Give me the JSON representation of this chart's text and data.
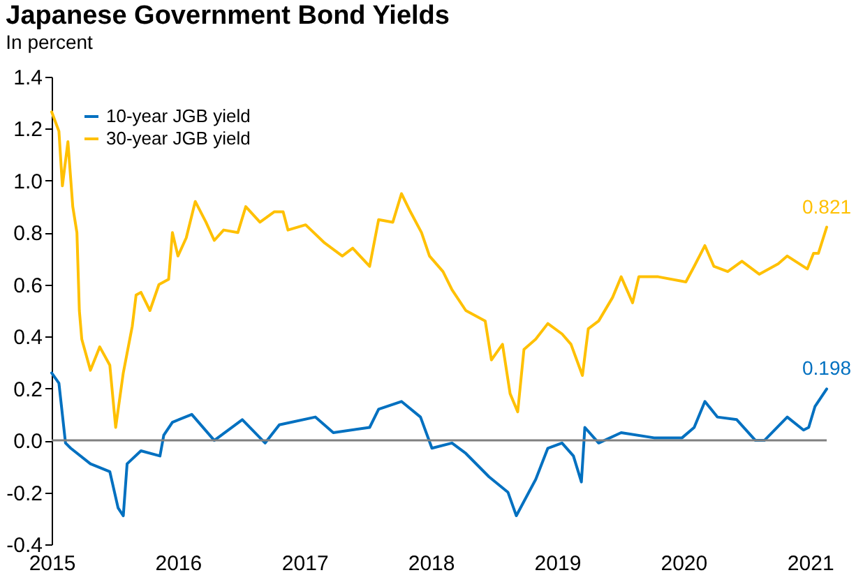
{
  "chart_data": {
    "type": "line",
    "title": "Japanese Government Bond Yields",
    "subtitle": "In percent",
    "xlim": [
      "2015-01-01",
      "2021-02-18"
    ],
    "xticks": [
      "2015",
      "2016",
      "2017",
      "2018",
      "2019",
      "2020",
      "2021"
    ],
    "ylim": [
      -0.4,
      1.4
    ],
    "yticks": [
      {
        "value": -0.4,
        "label": "-0.4"
      },
      {
        "value": -0.2,
        "label": "-0.2"
      },
      {
        "value": 0,
        "label": "0.0"
      },
      {
        "value": 0.2,
        "label": "0.2"
      },
      {
        "value": 0.4,
        "label": "0.4"
      },
      {
        "value": 0.6,
        "label": "0.6"
      },
      {
        "value": 0.8,
        "label": "0.8"
      },
      {
        "value": 1,
        "label": "1.0"
      },
      {
        "value": 1.2,
        "label": "1.2"
      },
      {
        "value": 1.4,
        "label": "1.4"
      }
    ],
    "grid": false,
    "legend": "top left",
    "line_style": "solid",
    "marker": "none",
    "ref_lines": [
      {
        "axis": "y",
        "value": 0,
        "color": "#808080"
      }
    ],
    "series": [
      {
        "name": "10-year JGB yield",
        "color": "#0070c0",
        "x": [
          "2015-01-01",
          "2015-01-22",
          "2015-02-10",
          "2015-02-25",
          "2015-04-23",
          "2015-06-18",
          "2015-07-12",
          "2015-07-27",
          "2015-08-07",
          "2015-09-16",
          "2015-11-10",
          "2015-11-21",
          "2015-12-16",
          "2016-02-10",
          "2016-04-15",
          "2016-07-05",
          "2016-09-09",
          "2016-10-20",
          "2017-02-01",
          "2017-03-25",
          "2017-07-08",
          "2017-08-03",
          "2017-10-08",
          "2017-12-02",
          "2018-01-04",
          "2018-03-03",
          "2018-04-12",
          "2018-06-18",
          "2018-08-12",
          "2018-09-05",
          "2018-10-31",
          "2018-12-05",
          "2019-01-15",
          "2019-02-17",
          "2019-03-12",
          "2019-03-22",
          "2019-05-01",
          "2019-07-05",
          "2019-10-08",
          "2019-12-28",
          "2020-02-01",
          "2020-03-03",
          "2020-04-08",
          "2020-06-03",
          "2020-07-27",
          "2020-08-22",
          "2020-10-27",
          "2020-12-13",
          "2020-12-28",
          "2021-01-15",
          "2021-02-18"
        ],
        "values": [
          0.26,
          0.22,
          -0.01,
          -0.03,
          -0.09,
          -0.12,
          -0.26,
          -0.29,
          -0.09,
          -0.04,
          -0.06,
          0.02,
          0.07,
          0.1,
          0.0,
          0.08,
          -0.01,
          0.06,
          0.09,
          0.03,
          0.05,
          0.12,
          0.15,
          0.09,
          -0.03,
          -0.01,
          -0.05,
          -0.14,
          -0.2,
          -0.29,
          -0.15,
          -0.03,
          -0.01,
          -0.06,
          -0.16,
          0.05,
          -0.01,
          0.03,
          0.01,
          0.01,
          0.05,
          0.15,
          0.09,
          0.08,
          0.0,
          0.0,
          0.09,
          0.04,
          0.05,
          0.13,
          0.198
        ],
        "value_labels": [
          null,
          null,
          null,
          null,
          null,
          null,
          null,
          null,
          null,
          null,
          null,
          null,
          null,
          null,
          null,
          null,
          null,
          null,
          null,
          null,
          null,
          null,
          null,
          null,
          null,
          null,
          null,
          null,
          null,
          null,
          null,
          null,
          null,
          null,
          null,
          null,
          null,
          null,
          null,
          null,
          null,
          null,
          null,
          null,
          null,
          null,
          null,
          null,
          null,
          null,
          "0.198"
        ]
      },
      {
        "name": "30-year JGB yield",
        "color": "#ffc000",
        "x": [
          "2015-01-01",
          "2015-01-22",
          "2015-02-01",
          "2015-02-17",
          "2015-03-03",
          "2015-03-15",
          "2015-03-22",
          "2015-03-29",
          "2015-04-23",
          "2015-05-20",
          "2015-06-18",
          "2015-07-05",
          "2015-07-27",
          "2015-08-22",
          "2015-09-02",
          "2015-09-16",
          "2015-10-12",
          "2015-11-07",
          "2015-12-05",
          "2015-12-16",
          "2016-01-01",
          "2016-01-25",
          "2016-02-20",
          "2016-03-22",
          "2016-04-15",
          "2016-05-12",
          "2016-06-22",
          "2016-07-15",
          "2016-08-25",
          "2016-10-05",
          "2016-10-31",
          "2016-11-14",
          "2017-01-04",
          "2017-02-28",
          "2017-04-20",
          "2017-05-20",
          "2017-07-08",
          "2017-08-03",
          "2017-09-13",
          "2017-10-08",
          "2017-11-03",
          "2017-12-05",
          "2017-12-28",
          "2018-02-05",
          "2018-03-03",
          "2018-04-12",
          "2018-06-07",
          "2018-06-25",
          "2018-07-27",
          "2018-08-18",
          "2018-09-09",
          "2018-09-27",
          "2018-10-31",
          "2018-12-05",
          "2019-01-15",
          "2019-02-10",
          "2019-03-15",
          "2019-04-01",
          "2019-05-01",
          "2019-06-10",
          "2019-07-05",
          "2019-08-07",
          "2019-08-25",
          "2019-10-20",
          "2020-01-08",
          "2020-02-01",
          "2020-03-03",
          "2020-03-29",
          "2020-05-08",
          "2020-06-18",
          "2020-08-07",
          "2020-10-01",
          "2020-10-27",
          "2020-12-24",
          "2021-01-11",
          "2021-01-25",
          "2021-02-18"
        ],
        "values": [
          1.265,
          1.19,
          0.98,
          1.15,
          0.9,
          0.8,
          0.5,
          0.39,
          0.27,
          0.36,
          0.29,
          0.05,
          0.26,
          0.44,
          0.56,
          0.57,
          0.5,
          0.6,
          0.62,
          0.8,
          0.71,
          0.78,
          0.92,
          0.84,
          0.77,
          0.81,
          0.8,
          0.9,
          0.84,
          0.88,
          0.88,
          0.81,
          0.83,
          0.76,
          0.71,
          0.74,
          0.67,
          0.85,
          0.84,
          0.95,
          0.88,
          0.8,
          0.71,
          0.65,
          0.58,
          0.5,
          0.46,
          0.31,
          0.37,
          0.18,
          0.11,
          0.35,
          0.39,
          0.45,
          0.41,
          0.37,
          0.25,
          0.43,
          0.46,
          0.55,
          0.63,
          0.53,
          0.63,
          0.63,
          0.61,
          0.67,
          0.75,
          0.67,
          0.65,
          0.69,
          0.64,
          0.68,
          0.71,
          0.66,
          0.72,
          0.72,
          0.821
        ],
        "value_labels": [
          null,
          null,
          null,
          null,
          null,
          null,
          null,
          null,
          null,
          null,
          null,
          null,
          null,
          null,
          null,
          null,
          null,
          null,
          null,
          null,
          null,
          null,
          null,
          null,
          null,
          null,
          null,
          null,
          null,
          null,
          null,
          null,
          null,
          null,
          null,
          null,
          null,
          null,
          null,
          null,
          null,
          null,
          null,
          null,
          null,
          null,
          null,
          null,
          null,
          null,
          null,
          null,
          null,
          null,
          null,
          null,
          null,
          null,
          null,
          null,
          null,
          null,
          null,
          null,
          null,
          null,
          null,
          null,
          null,
          null,
          null,
          null,
          null,
          null,
          null,
          null,
          "0.821"
        ]
      }
    ]
  }
}
